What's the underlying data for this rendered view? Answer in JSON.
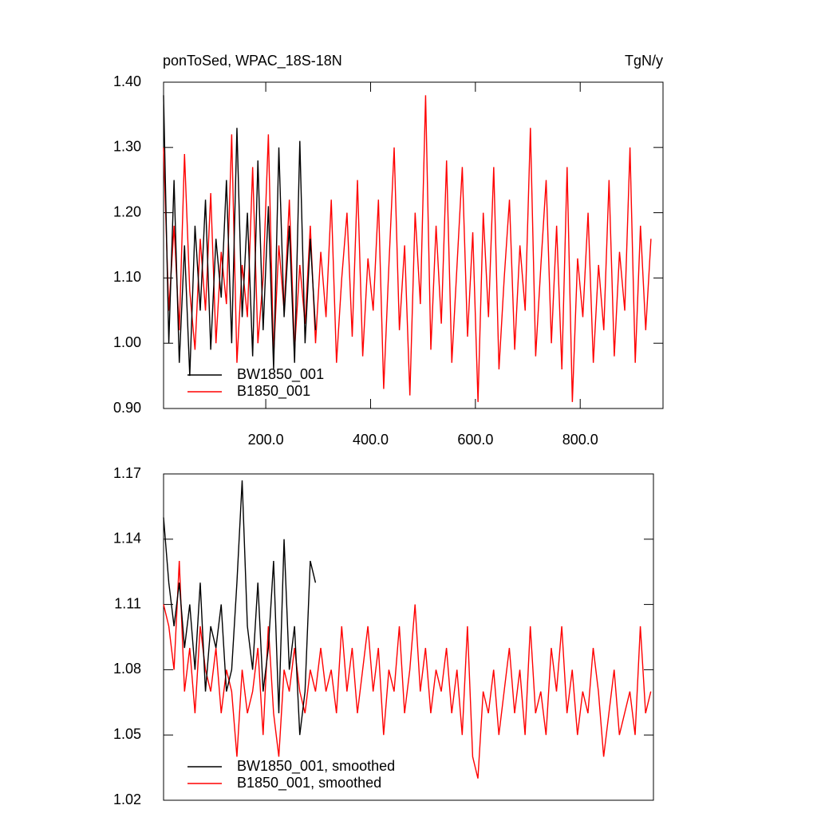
{
  "chart_data": [
    {
      "type": "line",
      "title": "ponToSed, WPAC_18S-18N",
      "units": "TgN/y",
      "xlim": [
        5,
        958
      ],
      "ylim": [
        0.9,
        1.4
      ],
      "xticks": [
        {
          "value": 200,
          "label": "200.0"
        },
        {
          "value": 400,
          "label": "400.0"
        },
        {
          "value": 600,
          "label": "600.0"
        },
        {
          "value": 800,
          "label": "800.0"
        }
      ],
      "yticks": [
        {
          "value": 0.9,
          "label": "0.90"
        },
        {
          "value": 1.0,
          "label": "1.00"
        },
        {
          "value": 1.1,
          "label": "1.10"
        },
        {
          "value": 1.2,
          "label": "1.20"
        },
        {
          "value": 1.3,
          "label": "1.30"
        },
        {
          "value": 1.4,
          "label": "1.40"
        }
      ],
      "x": [
        5,
        15,
        25,
        35,
        45,
        55,
        65,
        75,
        85,
        95,
        105,
        115,
        125,
        135,
        145,
        155,
        165,
        175,
        185,
        195,
        205,
        215,
        225,
        235,
        245,
        255,
        265,
        275,
        285,
        295,
        305,
        315,
        325,
        335,
        345,
        355,
        365,
        375,
        385,
        395,
        405,
        415,
        425,
        435,
        445,
        455,
        465,
        475,
        485,
        495,
        505,
        515,
        525,
        535,
        545,
        555,
        565,
        575,
        585,
        595,
        605,
        615,
        625,
        635,
        645,
        655,
        665,
        675,
        685,
        695,
        705,
        715,
        725,
        735,
        745,
        755,
        765,
        775,
        785,
        795,
        805,
        815,
        825,
        835,
        845,
        855,
        865,
        875,
        885,
        895,
        905,
        915,
        925,
        935
      ],
      "series": [
        {
          "name": "B1850_001",
          "color": "#ff0000",
          "values": [
            1.3,
            1.05,
            1.18,
            1.02,
            1.29,
            1.08,
            0.99,
            1.16,
            1.05,
            1.23,
            1.0,
            1.14,
            1.06,
            1.32,
            0.97,
            1.12,
            1.04,
            1.27,
            1.0,
            1.1,
            1.32,
            0.98,
            1.15,
            1.05,
            1.22,
            0.99,
            1.12,
            1.03,
            1.18,
            1.0,
            1.14,
            1.04,
            1.22,
            0.97,
            1.1,
            1.2,
            1.01,
            1.25,
            0.98,
            1.13,
            1.05,
            1.22,
            0.93,
            1.12,
            1.3,
            1.02,
            1.15,
            0.92,
            1.2,
            1.06,
            1.38,
            0.99,
            1.18,
            1.03,
            1.28,
            0.97,
            1.12,
            1.27,
            1.01,
            1.17,
            0.91,
            1.2,
            1.04,
            1.27,
            0.96,
            1.1,
            1.22,
            0.99,
            1.15,
            1.05,
            1.33,
            0.98,
            1.12,
            1.25,
            1.0,
            1.18,
            0.96,
            1.27,
            0.91,
            1.13,
            1.04,
            1.2,
            0.97,
            1.12,
            1.02,
            1.25,
            0.98,
            1.14,
            1.05,
            1.3,
            0.97,
            1.18,
            1.02,
            1.16
          ]
        },
        {
          "name": "BW1850_001",
          "color": "#000000",
          "values": [
            1.38,
            1.0,
            1.25,
            0.97,
            1.15,
            0.95,
            1.18,
            1.05,
            1.22,
            0.99,
            1.16,
            1.07,
            1.25,
            1.0,
            1.33,
            1.04,
            1.2,
            0.98,
            1.28,
            1.02,
            1.21,
            0.96,
            1.3,
            1.04,
            1.18,
            0.97,
            1.31,
            1.0,
            1.16,
            1.02,
            null,
            null,
            null,
            null,
            null,
            null,
            null,
            null,
            null,
            null,
            null,
            null,
            null,
            null,
            null,
            null,
            null,
            null,
            null,
            null,
            null,
            null,
            null,
            null,
            null,
            null,
            null,
            null,
            null,
            null,
            null,
            null,
            null,
            null,
            null,
            null,
            null,
            null,
            null,
            null,
            null,
            null,
            null,
            null,
            null,
            null,
            null,
            null,
            null,
            null,
            null,
            null,
            null,
            null,
            null,
            null,
            null,
            null,
            null,
            null,
            null,
            null,
            null,
            null
          ]
        }
      ]
    },
    {
      "type": "line",
      "xlim": [
        5,
        940
      ],
      "ylim": [
        1.02,
        1.17
      ],
      "yticks": [
        1.02,
        1.05,
        1.08,
        1.11,
        1.14,
        1.17
      ],
      "x": [
        5,
        15,
        25,
        35,
        45,
        55,
        65,
        75,
        85,
        95,
        105,
        115,
        125,
        135,
        145,
        155,
        165,
        175,
        185,
        195,
        205,
        215,
        225,
        235,
        245,
        255,
        265,
        275,
        285,
        295,
        305,
        315,
        325,
        335,
        345,
        355,
        365,
        375,
        385,
        395,
        405,
        415,
        425,
        435,
        445,
        455,
        465,
        475,
        485,
        495,
        505,
        515,
        525,
        535,
        545,
        555,
        565,
        575,
        585,
        595,
        605,
        615,
        625,
        635,
        645,
        655,
        665,
        675,
        685,
        695,
        705,
        715,
        725,
        735,
        745,
        755,
        765,
        775,
        785,
        795,
        805,
        815,
        825,
        835,
        845,
        855,
        865,
        875,
        885,
        895,
        905,
        915,
        925,
        935
      ],
      "series": [
        {
          "name": "B1850_001, smoothed",
          "color": "#ff0000",
          "values": [
            1.11,
            1.1,
            1.08,
            1.13,
            1.07,
            1.09,
            1.06,
            1.1,
            1.08,
            1.07,
            1.09,
            1.06,
            1.08,
            1.07,
            1.04,
            1.08,
            1.06,
            1.07,
            1.09,
            1.05,
            1.1,
            1.06,
            1.04,
            1.08,
            1.07,
            1.09,
            1.07,
            1.06,
            1.08,
            1.07,
            1.09,
            1.07,
            1.08,
            1.06,
            1.1,
            1.07,
            1.09,
            1.06,
            1.08,
            1.1,
            1.07,
            1.09,
            1.05,
            1.08,
            1.07,
            1.1,
            1.06,
            1.08,
            1.11,
            1.07,
            1.09,
            1.06,
            1.08,
            1.07,
            1.09,
            1.06,
            1.08,
            1.05,
            1.1,
            1.04,
            1.03,
            1.07,
            1.06,
            1.08,
            1.05,
            1.07,
            1.09,
            1.06,
            1.08,
            1.05,
            1.1,
            1.06,
            1.07,
            1.05,
            1.09,
            1.07,
            1.1,
            1.06,
            1.08,
            1.05,
            1.07,
            1.06,
            1.09,
            1.07,
            1.04,
            1.06,
            1.08,
            1.05,
            1.06,
            1.07,
            1.05,
            1.1,
            1.06,
            1.07
          ]
        },
        {
          "name": "BW1850_001, smoothed",
          "color": "#000000",
          "values": [
            1.15,
            1.12,
            1.1,
            1.12,
            1.09,
            1.11,
            1.08,
            1.12,
            1.07,
            1.1,
            1.09,
            1.11,
            1.07,
            1.08,
            1.12,
            1.167,
            1.1,
            1.08,
            1.12,
            1.07,
            1.09,
            1.13,
            1.06,
            1.14,
            1.08,
            1.1,
            1.05,
            1.07,
            1.13,
            1.12,
            null,
            null,
            null,
            null,
            null,
            null,
            null,
            null,
            null,
            null,
            null,
            null,
            null,
            null,
            null,
            null,
            null,
            null,
            null,
            null,
            null,
            null,
            null,
            null,
            null,
            null,
            null,
            null,
            null,
            null,
            null,
            null,
            null,
            null,
            null,
            null,
            null,
            null,
            null,
            null,
            null,
            null,
            null,
            null,
            null,
            null,
            null,
            null,
            null,
            null,
            null,
            null,
            null,
            null,
            null,
            null,
            null,
            null,
            null,
            null,
            null,
            null,
            null,
            null
          ]
        }
      ]
    }
  ]
}
